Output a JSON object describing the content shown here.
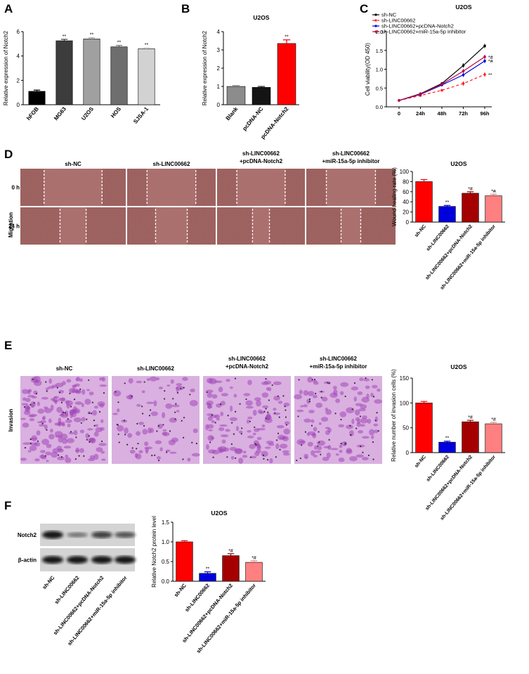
{
  "panels": {
    "A": {
      "letter": "A",
      "chart_data": {
        "type": "bar",
        "title": "",
        "ylabel": "Relative expression of Notch2",
        "categories": [
          "hFOB",
          "MG63",
          "U2OS",
          "HOS",
          "SJSA-1"
        ],
        "values": [
          1.1,
          5.25,
          5.4,
          4.75,
          4.6
        ],
        "errors": [
          0.1,
          0.12,
          0.1,
          0.12,
          0.08
        ],
        "annotations": [
          "",
          "**",
          "**",
          "**",
          "**"
        ],
        "colors": [
          "#000000",
          "#3c3c3c",
          "#a0a0a0",
          "#6e6e6e",
          "#d2d2d2"
        ],
        "ylim": [
          0,
          6
        ],
        "yticks": [
          "0",
          "2",
          "4",
          "6"
        ]
      }
    },
    "B": {
      "letter": "B",
      "chart_data": {
        "type": "bar",
        "title": "U2OS",
        "ylabel": "Relative expression of Notch2",
        "categories": [
          "Blank",
          "pcDNA-NC",
          "pcDNA-Notch2"
        ],
        "values": [
          1.0,
          0.95,
          3.35
        ],
        "errors": [
          0.05,
          0.05,
          0.2
        ],
        "annotations": [
          "",
          "",
          "**"
        ],
        "colors": [
          "#8c8c8c",
          "#141414",
          "#ff0000"
        ],
        "ylim": [
          0,
          4
        ],
        "yticks": [
          "0",
          "1",
          "2",
          "3",
          "4"
        ]
      }
    },
    "C": {
      "letter": "C",
      "chart_data": {
        "type": "line",
        "title": "U2OS",
        "ylabel": "Cell viability(OD 450)",
        "x": [
          "0",
          "24h",
          "48h",
          "72h",
          "96h"
        ],
        "ylim": [
          0,
          2.0
        ],
        "yticks": [
          "0.0",
          "0.5",
          "1.0",
          "1.5",
          "2.0"
        ],
        "series": [
          {
            "name": "sh-NC",
            "values": [
              0.17,
              0.35,
              0.62,
              1.1,
              1.62
            ],
            "color": "#000000",
            "dash": ""
          },
          {
            "name": "sh-LINC00662",
            "values": [
              0.17,
              0.3,
              0.44,
              0.62,
              0.86
            ],
            "color": "#ff2020",
            "dash": "4,3"
          },
          {
            "name": "sh-LINC00662+pcDNA-Notch2",
            "values": [
              0.17,
              0.33,
              0.58,
              0.85,
              1.22
            ],
            "color": "#0000e0",
            "dash": ""
          },
          {
            "name": "sh-LINC00662+miR-15a-5p inhibitor",
            "values": [
              0.17,
              0.34,
              0.6,
              0.95,
              1.33
            ],
            "color": "#c00040",
            "dash": ""
          }
        ],
        "end_annotations": [
          "",
          "**",
          "*#",
          "*#"
        ]
      }
    },
    "D": {
      "letter": "D",
      "side_label": "Migration",
      "columns": [
        "sh-NC",
        "sh-LINC00662",
        "sh-LINC00662\n+pcDNA-Notch2",
        "sh-LINC00662\n+miR-15a-5p inhibitor"
      ],
      "rows": [
        "0 h",
        "24 h"
      ],
      "chart_data": {
        "type": "bar",
        "title": "U2OS",
        "ylabel": "Wound healing rate (%)",
        "categories": [
          "sh-NC",
          "sh-LINC00662",
          "sh-LINC00662+pcDNA-Notch2",
          "sh-LINC00662+miR-15a-5p inhibitor"
        ],
        "values": [
          80,
          31,
          57,
          52
        ],
        "errors": [
          4,
          2,
          3,
          3
        ],
        "annotations": [
          "",
          "**",
          "*#",
          "*#"
        ],
        "colors": [
          "#ff0000",
          "#0000dd",
          "#a50000",
          "#ff8080"
        ],
        "ylim": [
          0,
          100
        ],
        "yticks": [
          "0",
          "20",
          "40",
          "60",
          "80",
          "100"
        ]
      }
    },
    "E": {
      "letter": "E",
      "side_label": "Invasion",
      "columns": [
        "sh-NC",
        "sh-LINC00662",
        "sh-LINC00662\n+pcDNA-Notch2",
        "sh-LINC00662\n+miR-15a-5p inhibitor"
      ],
      "chart_data": {
        "type": "bar",
        "title": "U2OS",
        "ylabel": "Relative number of invasion cells (%)",
        "categories": [
          "sh-NC",
          "sh-LINC00662",
          "sh-LINC00662+pcDNA-Notch2",
          "sh-LINC00662+miR-15a-5p inhibitor"
        ],
        "values": [
          100,
          21,
          62,
          58
        ],
        "errors": [
          3,
          2,
          3,
          3
        ],
        "annotations": [
          "",
          "**",
          "*#",
          "*#"
        ],
        "colors": [
          "#ff0000",
          "#0000dd",
          "#a50000",
          "#ff8080"
        ],
        "ylim": [
          0,
          150
        ],
        "yticks": [
          "0",
          "50",
          "100",
          "150"
        ]
      }
    },
    "F": {
      "letter": "F",
      "blot_labels": [
        "Notch2",
        "β-actin"
      ],
      "lanes": [
        "sh-NC",
        "sh-LINC00662",
        "sh-LINC00662+pcDNA-Notch2",
        "sh-LINC00662+miR-15a-5p inhibitor"
      ],
      "band_intensity": {
        "Notch2": [
          1.0,
          0.2,
          0.65,
          0.48
        ],
        "β-actin": [
          1.0,
          1.0,
          1.0,
          1.0
        ]
      },
      "chart_data": {
        "type": "bar",
        "title": "U2OS",
        "ylabel": "Relative Notch2 protein level",
        "categories": [
          "sh-NC",
          "sh-LINC00662",
          "sh-LINC00662+pcDNA-Notch2",
          "sh-LINC00662+miR-15a-5p inhibitor"
        ],
        "values": [
          1.0,
          0.2,
          0.65,
          0.48
        ],
        "errors": [
          0.03,
          0.04,
          0.05,
          0.04
        ],
        "annotations": [
          "",
          "**",
          "*#",
          "*#"
        ],
        "colors": [
          "#ff0000",
          "#0000dd",
          "#a50000",
          "#ff8080"
        ],
        "ylim": [
          0,
          1.5
        ],
        "yticks": [
          "0.0",
          "0.5",
          "1.0",
          "1.5"
        ]
      }
    }
  },
  "colors": {
    "wound_bg": "#9a5a58",
    "invasion_bg": "#d9b0e0",
    "blot_bg": "#d4d4d4"
  }
}
